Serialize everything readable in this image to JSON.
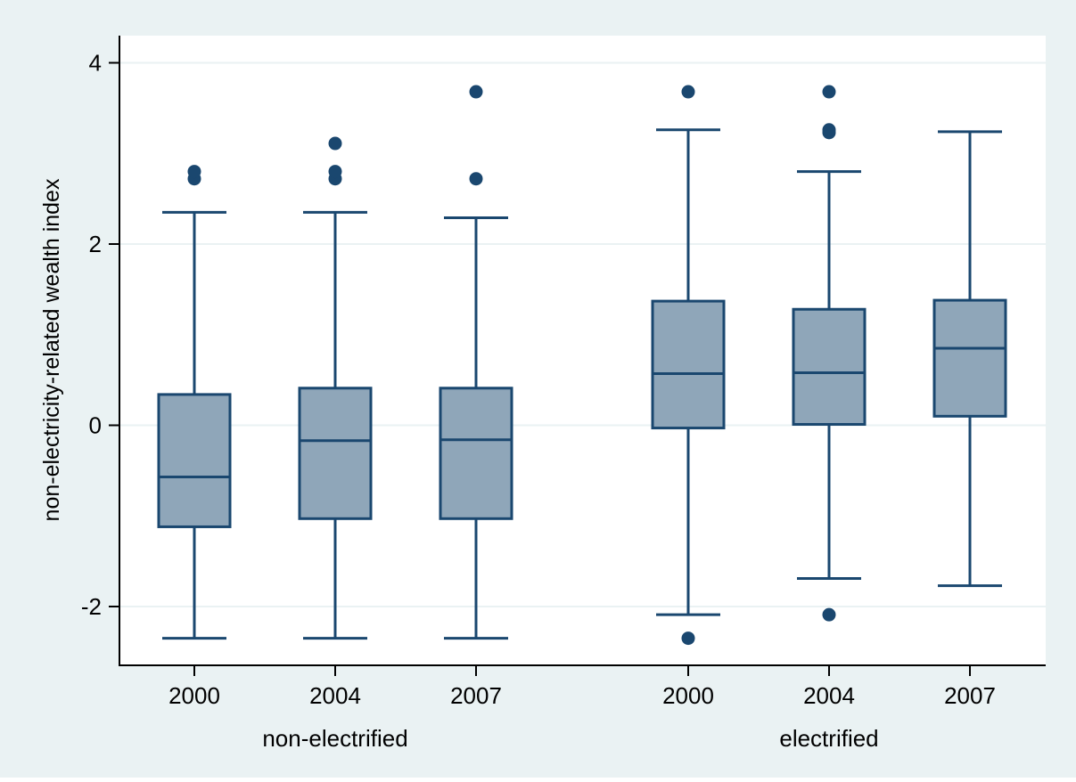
{
  "chart_data": {
    "type": "box",
    "ylabel": "non-electricity-related wealth index",
    "ylim": [
      -2.65,
      4.3
    ],
    "yticks": [
      4,
      2,
      0,
      -2
    ],
    "ytick_labels": [
      "4",
      "2",
      "0",
      "-2"
    ],
    "grid": true,
    "colors": {
      "background": "#eaf2f3",
      "plot_background": "#ffffff",
      "box_fill": "#8fa6b9",
      "line": "#1a476f",
      "grid": "#eaf2f3"
    },
    "groups": [
      {
        "label": "non-electrified"
      },
      {
        "label": "electrified"
      }
    ],
    "boxes": [
      {
        "group": 0,
        "label": "2000",
        "whisker_low": -2.35,
        "q1": -1.12,
        "median": -0.57,
        "q3": 0.34,
        "whisker_high": 2.35,
        "outliers": [
          2.72,
          2.8
        ]
      },
      {
        "group": 0,
        "label": "2004",
        "whisker_low": -2.35,
        "q1": -1.03,
        "median": -0.17,
        "q3": 0.41,
        "whisker_high": 2.35,
        "outliers": [
          2.72,
          2.8,
          3.11
        ]
      },
      {
        "group": 0,
        "label": "2007",
        "whisker_low": -2.35,
        "q1": -1.03,
        "median": -0.16,
        "q3": 0.41,
        "whisker_high": 2.29,
        "outliers": [
          2.72,
          3.68
        ]
      },
      {
        "group": 1,
        "label": "2000",
        "whisker_low": -2.09,
        "q1": -0.03,
        "median": 0.57,
        "q3": 1.37,
        "whisker_high": 3.26,
        "outliers": [
          -2.35,
          3.68
        ]
      },
      {
        "group": 1,
        "label": "2004",
        "whisker_low": -1.69,
        "q1": 0.01,
        "median": 0.58,
        "q3": 1.28,
        "whisker_high": 2.8,
        "outliers": [
          -2.09,
          3.23,
          3.26,
          3.68
        ]
      },
      {
        "group": 1,
        "label": "2007",
        "whisker_low": -1.77,
        "q1": 0.1,
        "median": 0.85,
        "q3": 1.38,
        "whisker_high": 3.24,
        "outliers": []
      }
    ]
  }
}
